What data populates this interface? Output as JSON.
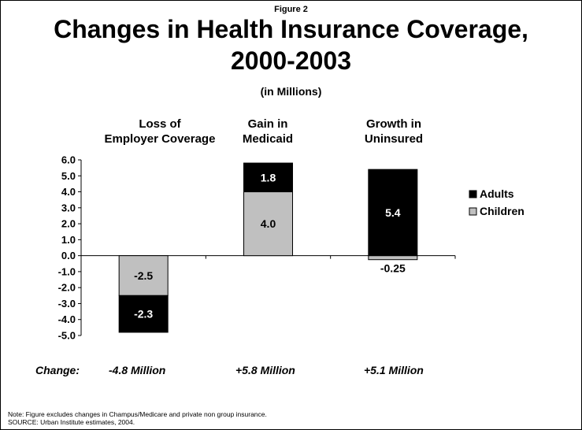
{
  "figure_label": "Figure 2",
  "title_line1": "Changes in Health Insurance Coverage,",
  "title_line2": "2000-2003",
  "subtitle": "(in Millions)",
  "chart_data": {
    "type": "bar",
    "stacked": true,
    "categories": [
      "Loss of Employer Coverage",
      "Gain in Medicaid",
      "Growth in Uninsured"
    ],
    "category_lines": [
      [
        "Loss of",
        "Employer Coverage"
      ],
      [
        "Gain in",
        "Medicaid"
      ],
      [
        "Growth in",
        "Uninsured"
      ]
    ],
    "series": [
      {
        "name": "Adults",
        "color": "#000000",
        "values": [
          -2.3,
          1.8,
          5.4
        ],
        "labels": [
          "-2.3",
          "1.8",
          "5.4"
        ]
      },
      {
        "name": "Children",
        "color": "#c0c0c0",
        "values": [
          -2.5,
          4.0,
          -0.25
        ],
        "labels": [
          "-2.5",
          "4.0",
          "-0.25"
        ]
      }
    ],
    "ylim": [
      -5.0,
      6.0
    ],
    "yticks": [
      "6.0",
      "5.0",
      "4.0",
      "3.0",
      "2.0",
      "1.0",
      "0.0",
      "-1.0",
      "-2.0",
      "-3.0",
      "-4.0",
      "-5.0"
    ],
    "legend_position": "right",
    "change_label": "Change:",
    "change_values": [
      "-4.8 Million",
      "+5.8 Million",
      "+5.1 Million"
    ]
  },
  "note": "Note: Figure excludes changes in Champus/Medicare and private non group insurance.",
  "source": "SOURCE: Urban Institute estimates, 2004."
}
